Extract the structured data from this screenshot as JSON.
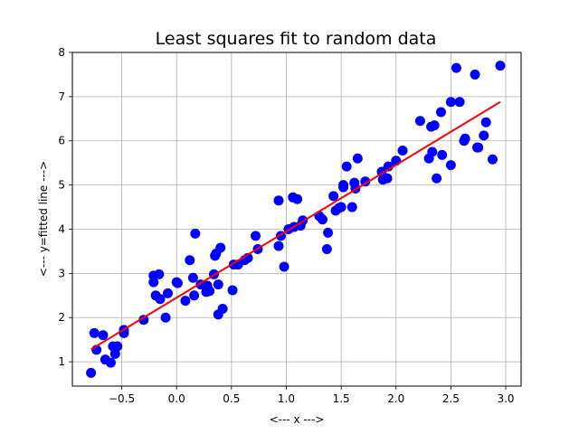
{
  "chart_data": {
    "type": "scatter",
    "title": "Least squares fit to random data",
    "xlabel": "<--- x --->",
    "ylabel": "<--- y=fitted line --->",
    "xlim": [
      -0.95,
      3.14
    ],
    "ylim": [
      0.45,
      8.0
    ],
    "xticks": [
      -0.5,
      0.0,
      0.5,
      1.0,
      1.5,
      2.0,
      2.5,
      3.0
    ],
    "xtick_labels": [
      "−0.5",
      "0.0",
      "0.5",
      "1.0",
      "1.5",
      "2.0",
      "2.5",
      "3.0"
    ],
    "yticks": [
      1,
      2,
      3,
      4,
      5,
      6,
      7,
      8
    ],
    "ytick_labels": [
      "1",
      "2",
      "3",
      "4",
      "5",
      "6",
      "7",
      "8"
    ],
    "grid": true,
    "points_color": "#0000ff",
    "line_color": "#ff0000",
    "points": [
      [
        -0.78,
        0.75
      ],
      [
        -0.75,
        1.65
      ],
      [
        -0.73,
        1.27
      ],
      [
        -0.67,
        1.6
      ],
      [
        -0.65,
        1.05
      ],
      [
        -0.6,
        0.98
      ],
      [
        -0.58,
        1.35
      ],
      [
        -0.56,
        1.18
      ],
      [
        -0.54,
        1.35
      ],
      [
        -0.48,
        1.72
      ],
      [
        -0.48,
        1.65
      ],
      [
        -0.3,
        1.95
      ],
      [
        -0.21,
        2.95
      ],
      [
        -0.21,
        2.8
      ],
      [
        -0.19,
        2.5
      ],
      [
        -0.16,
        2.98
      ],
      [
        -0.15,
        2.42
      ],
      [
        -0.1,
        2.0
      ],
      [
        -0.08,
        2.55
      ],
      [
        0.0,
        2.8
      ],
      [
        0.01,
        2.78
      ],
      [
        0.08,
        2.38
      ],
      [
        0.12,
        3.3
      ],
      [
        0.15,
        2.9
      ],
      [
        0.16,
        2.5
      ],
      [
        0.17,
        3.9
      ],
      [
        0.22,
        2.75
      ],
      [
        0.27,
        2.58
      ],
      [
        0.28,
        2.72
      ],
      [
        0.3,
        2.6
      ],
      [
        0.34,
        2.98
      ],
      [
        0.35,
        3.4
      ],
      [
        0.36,
        3.45
      ],
      [
        0.38,
        2.07
      ],
      [
        0.38,
        2.75
      ],
      [
        0.4,
        3.58
      ],
      [
        0.42,
        2.2
      ],
      [
        0.51,
        2.62
      ],
      [
        0.52,
        3.2
      ],
      [
        0.56,
        3.2
      ],
      [
        0.62,
        3.3
      ],
      [
        0.65,
        3.35
      ],
      [
        0.72,
        3.85
      ],
      [
        0.74,
        3.55
      ],
      [
        0.93,
        4.65
      ],
      [
        0.93,
        3.62
      ],
      [
        0.95,
        3.85
      ],
      [
        0.98,
        3.15
      ],
      [
        1.02,
        4.0
      ],
      [
        1.06,
        4.72
      ],
      [
        1.07,
        4.05
      ],
      [
        1.1,
        4.68
      ],
      [
        1.13,
        4.08
      ],
      [
        1.15,
        4.2
      ],
      [
        1.3,
        4.3
      ],
      [
        1.33,
        4.22
      ],
      [
        1.37,
        3.55
      ],
      [
        1.38,
        3.92
      ],
      [
        1.43,
        4.75
      ],
      [
        1.45,
        4.42
      ],
      [
        1.48,
        4.48
      ],
      [
        1.5,
        4.5
      ],
      [
        1.52,
        4.95
      ],
      [
        1.52,
        5.0
      ],
      [
        1.55,
        5.42
      ],
      [
        1.6,
        4.5
      ],
      [
        1.62,
        5.05
      ],
      [
        1.63,
        4.92
      ],
      [
        1.65,
        5.6
      ],
      [
        1.72,
        5.08
      ],
      [
        1.87,
        5.3
      ],
      [
        1.88,
        5.12
      ],
      [
        1.92,
        5.15
      ],
      [
        1.93,
        5.42
      ],
      [
        2.0,
        5.55
      ],
      [
        2.06,
        5.78
      ],
      [
        2.22,
        6.45
      ],
      [
        2.3,
        5.6
      ],
      [
        2.32,
        6.32
      ],
      [
        2.33,
        5.75
      ],
      [
        2.35,
        6.35
      ],
      [
        2.37,
        5.15
      ],
      [
        2.41,
        6.65
      ],
      [
        2.42,
        5.68
      ],
      [
        2.5,
        6.88
      ],
      [
        2.5,
        5.45
      ],
      [
        2.55,
        7.65
      ],
      [
        2.58,
        6.88
      ],
      [
        2.62,
        6.0
      ],
      [
        2.63,
        6.05
      ],
      [
        2.72,
        7.5
      ],
      [
        2.74,
        5.85
      ],
      [
        2.75,
        5.85
      ],
      [
        2.8,
        6.12
      ],
      [
        2.82,
        6.42
      ],
      [
        2.88,
        5.58
      ],
      [
        2.95,
        7.7
      ]
    ],
    "fit_line": {
      "x": [
        -0.78,
        2.95
      ],
      "y": [
        1.28,
        6.88
      ]
    }
  }
}
